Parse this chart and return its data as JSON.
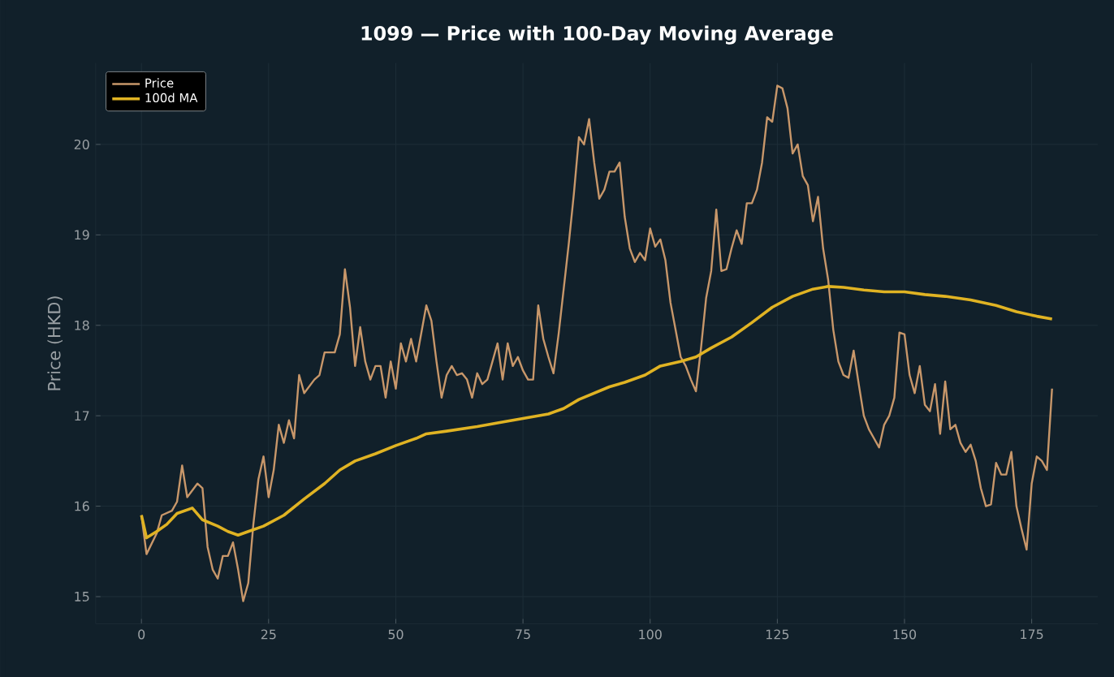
{
  "chart_data": {
    "type": "line",
    "title": "1099 — Price with 100-Day Moving Average",
    "ylabel": "Price (HKD)",
    "xlim": [
      -9,
      188
    ],
    "ylim": [
      14.7,
      20.9
    ],
    "xticks": [
      0,
      25,
      50,
      75,
      100,
      125,
      150,
      175
    ],
    "yticks": [
      15,
      16,
      17,
      18,
      19,
      20
    ],
    "grid": true,
    "legend": "top left",
    "series": [
      {
        "name": "Price",
        "color": "#c8976a",
        "x": [
          0,
          1,
          3,
          4,
          6,
          7,
          8,
          9,
          11,
          12,
          13,
          14,
          15,
          16,
          17,
          18,
          19,
          20,
          21,
          22,
          23,
          24,
          25,
          26,
          27,
          28,
          29,
          30,
          31,
          32,
          34,
          35,
          36,
          38,
          39,
          40,
          41,
          42,
          43,
          44,
          45,
          46,
          47,
          48,
          49,
          50,
          51,
          52,
          53,
          54,
          56,
          57,
          58,
          59,
          60,
          61,
          62,
          63,
          64,
          65,
          66,
          67,
          68,
          69,
          70,
          71,
          72,
          73,
          74,
          75,
          76,
          77,
          78,
          79,
          80,
          81,
          82,
          84,
          85,
          86,
          87,
          88,
          89,
          90,
          91,
          92,
          93,
          94,
          95,
          96,
          97,
          98,
          99,
          100,
          101,
          102,
          103,
          104,
          105,
          106,
          107,
          108,
          109,
          110,
          111,
          112,
          113,
          114,
          115,
          116,
          117,
          118,
          119,
          120,
          121,
          122,
          123,
          124,
          125,
          126,
          127,
          128,
          129,
          130,
          131,
          132,
          133,
          134,
          135,
          136,
          137,
          138,
          139,
          140,
          141,
          142,
          143,
          144,
          145,
          146,
          147,
          148,
          149,
          150,
          151,
          152,
          153,
          154,
          155,
          156,
          157,
          158,
          159,
          160,
          161,
          162,
          163,
          164,
          165,
          166,
          167,
          168,
          169,
          170,
          171,
          172,
          173,
          174,
          175,
          176,
          177,
          178,
          179
        ],
        "values": [
          15.9,
          15.47,
          15.7,
          15.9,
          15.95,
          16.05,
          16.45,
          16.1,
          16.25,
          16.2,
          15.55,
          15.3,
          15.2,
          15.45,
          15.45,
          15.6,
          15.3,
          14.95,
          15.15,
          15.8,
          16.3,
          16.55,
          16.1,
          16.4,
          16.9,
          16.7,
          16.95,
          16.75,
          17.45,
          17.25,
          17.4,
          17.45,
          17.7,
          17.7,
          17.9,
          18.62,
          18.2,
          17.55,
          17.98,
          17.6,
          17.4,
          17.55,
          17.55,
          17.2,
          17.6,
          17.3,
          17.8,
          17.6,
          17.85,
          17.6,
          18.22,
          18.05,
          17.6,
          17.2,
          17.45,
          17.55,
          17.45,
          17.47,
          17.4,
          17.2,
          17.47,
          17.35,
          17.4,
          17.6,
          17.8,
          17.4,
          17.8,
          17.55,
          17.65,
          17.5,
          17.4,
          17.4,
          18.22,
          17.85,
          17.65,
          17.47,
          17.9,
          18.9,
          19.45,
          20.08,
          20.0,
          20.28,
          19.8,
          19.4,
          19.5,
          19.7,
          19.7,
          19.8,
          19.2,
          18.85,
          18.7,
          18.8,
          18.72,
          19.07,
          18.87,
          18.95,
          18.72,
          18.25,
          17.95,
          17.65,
          17.55,
          17.4,
          17.27,
          17.75,
          18.3,
          18.6,
          19.28,
          18.6,
          18.62,
          18.85,
          19.05,
          18.9,
          19.35,
          19.35,
          19.5,
          19.8,
          20.3,
          20.25,
          20.65,
          20.62,
          20.4,
          19.9,
          20.0,
          19.65,
          19.55,
          19.15,
          19.42,
          18.85,
          18.5,
          17.95,
          17.6,
          17.45,
          17.42,
          17.72,
          17.35,
          17.0,
          16.85,
          16.75,
          16.65,
          16.9,
          17.0,
          17.2,
          17.92,
          17.9,
          17.45,
          17.25,
          17.55,
          17.12,
          17.05,
          17.35,
          16.8,
          17.38,
          16.85,
          16.9,
          16.7,
          16.6,
          16.68,
          16.5,
          16.2,
          16.0,
          16.02,
          16.48,
          16.35,
          16.35,
          16.6,
          16.0,
          15.75,
          15.52,
          16.25,
          16.55,
          16.5,
          16.4,
          17.3
        ]
      },
      {
        "name": "100d MA",
        "color": "#e0b323",
        "x": [
          0,
          1,
          3,
          5,
          7,
          10,
          12,
          15,
          17,
          19,
          21,
          24,
          28,
          32,
          36,
          39,
          42,
          46,
          50,
          54,
          56,
          60,
          66,
          70,
          75,
          80,
          83,
          86,
          89,
          92,
          95,
          99,
          102,
          106,
          109,
          112,
          116,
          120,
          124,
          128,
          132,
          135,
          138,
          142,
          146,
          150,
          154,
          158,
          163,
          168,
          172,
          176,
          179
        ],
        "values": [
          15.9,
          15.65,
          15.72,
          15.8,
          15.92,
          15.98,
          15.85,
          15.78,
          15.72,
          15.68,
          15.72,
          15.78,
          15.9,
          16.08,
          16.25,
          16.4,
          16.5,
          16.58,
          16.67,
          16.75,
          16.8,
          16.83,
          16.88,
          16.92,
          16.97,
          17.02,
          17.08,
          17.18,
          17.25,
          17.32,
          17.37,
          17.45,
          17.55,
          17.6,
          17.65,
          17.75,
          17.87,
          18.03,
          18.2,
          18.32,
          18.4,
          18.43,
          18.42,
          18.39,
          18.37,
          18.37,
          18.34,
          18.32,
          18.28,
          18.22,
          18.15,
          18.1,
          18.07
        ]
      }
    ]
  }
}
